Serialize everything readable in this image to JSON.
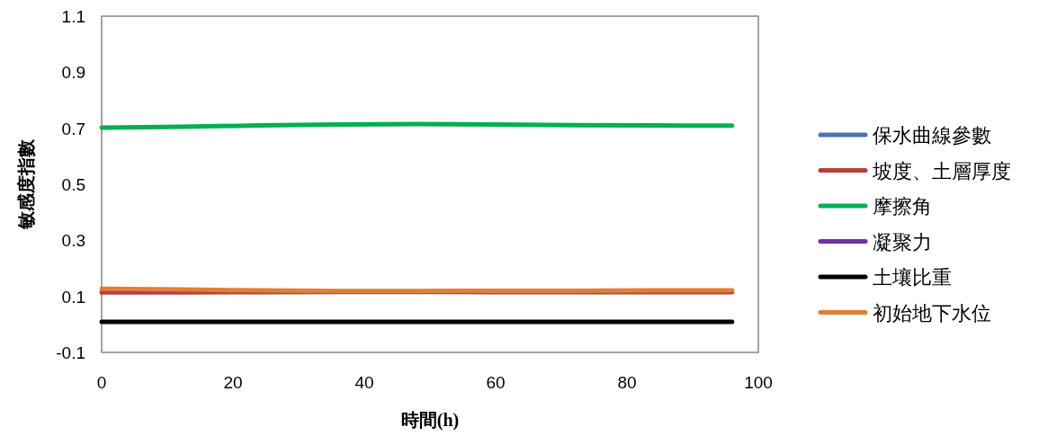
{
  "chart_data": {
    "type": "line",
    "xlabel": "時間(h)",
    "ylabel": "敏感度指數",
    "x": [
      0,
      12,
      24,
      36,
      48,
      60,
      72,
      84,
      96
    ],
    "xlim": [
      0,
      100
    ],
    "xticks": [
      0,
      20,
      40,
      60,
      80,
      100
    ],
    "ylim": [
      -0.1,
      1.1
    ],
    "yticks": [
      -0.1,
      0.1,
      0.3,
      0.5,
      0.7,
      0.9,
      1.1
    ],
    "legend": "right",
    "grid": false,
    "marker": "none",
    "line_style": "solid",
    "series": [
      {
        "name": "保水曲線參數",
        "color": "#4a74ae",
        "values": [
          null,
          null,
          null,
          null,
          null,
          null,
          null,
          null,
          null
        ]
      },
      {
        "name": "坡度、土層厚度",
        "color": "#b2433f",
        "values": [
          0.114,
          0.114,
          0.115,
          0.116,
          0.116,
          0.115,
          0.115,
          0.115,
          0.115
        ]
      },
      {
        "name": "摩擦角",
        "color": "#00b050",
        "values": [
          0.702,
          0.705,
          0.71,
          0.713,
          0.715,
          0.713,
          0.711,
          0.71,
          0.709
        ]
      },
      {
        "name": "凝聚力",
        "color": "#7030a0",
        "values": [
          null,
          null,
          null,
          null,
          null,
          null,
          null,
          null,
          null
        ]
      },
      {
        "name": "土壤比重",
        "color": "#000000",
        "values": [
          0.009,
          0.009,
          0.009,
          0.009,
          0.009,
          0.009,
          0.009,
          0.009,
          0.009
        ]
      },
      {
        "name": "初始地下水位",
        "color": "#e07f35",
        "values": [
          0.127,
          0.125,
          0.121,
          0.119,
          0.119,
          0.12,
          0.12,
          0.121,
          0.121
        ]
      }
    ]
  }
}
